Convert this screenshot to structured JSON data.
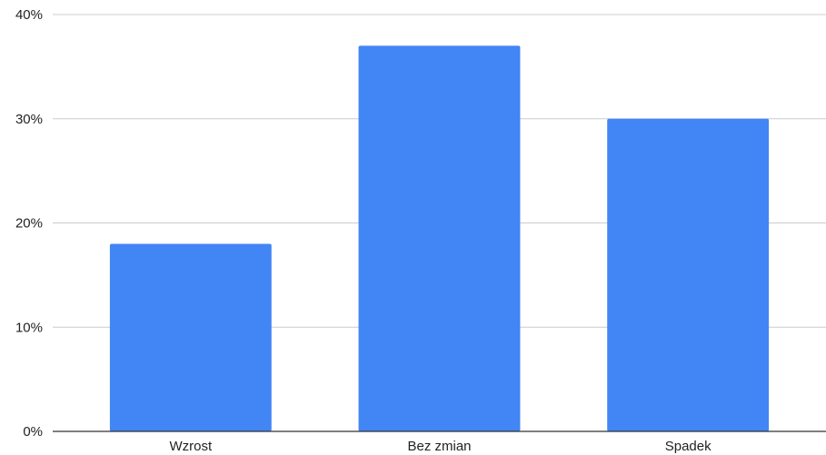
{
  "chart_data": {
    "type": "bar",
    "title": "",
    "xlabel": "",
    "ylabel": "",
    "categories": [
      "Wzrost",
      "Bez zmian",
      "Spadek"
    ],
    "values": [
      18,
      37,
      30
    ],
    "unit": "%",
    "ylim": [
      0,
      40
    ],
    "yticks": [
      0,
      10,
      20,
      30,
      40
    ],
    "ytick_labels": [
      "0%",
      "10%",
      "20%",
      "30%",
      "40%"
    ],
    "grid": true,
    "legend": "none",
    "bar_color": "#4285f4"
  }
}
